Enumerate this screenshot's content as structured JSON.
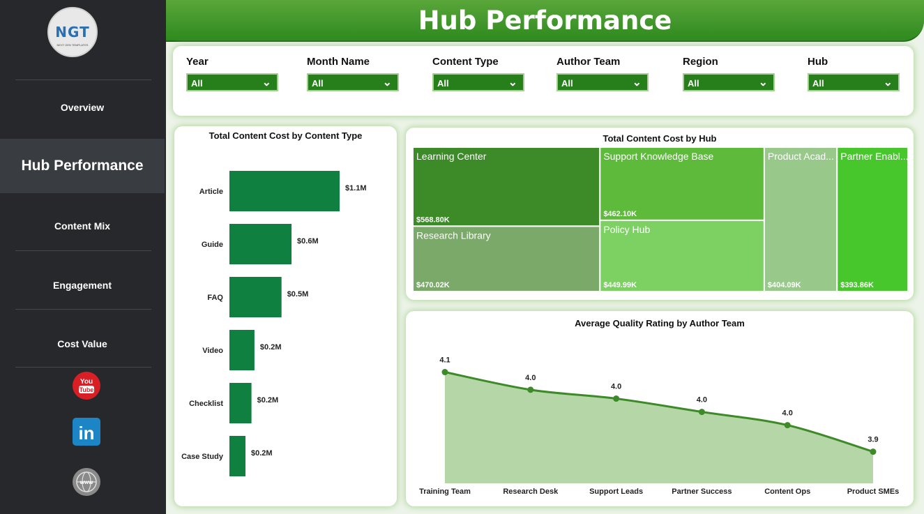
{
  "header": {
    "title": "Hub Performance"
  },
  "logo": {
    "text": "NGT",
    "subtitle": "NEXT GEN TEMPLATES"
  },
  "sidebar": {
    "items": [
      {
        "label": "Overview",
        "active": false
      },
      {
        "label": "Hub Performance",
        "active": true
      },
      {
        "label": "Content Mix",
        "active": false
      },
      {
        "label": "Engagement",
        "active": false
      },
      {
        "label": "Cost Value",
        "active": false
      }
    ],
    "social": [
      {
        "icon": "youtube-icon",
        "label": "YouTube",
        "color": "#d81f26"
      },
      {
        "icon": "linkedin-icon",
        "label": "in",
        "color": "#1b85c6"
      },
      {
        "icon": "globe-icon",
        "label": "www",
        "color": "#7a7a7a"
      }
    ]
  },
  "filters": [
    {
      "label": "Year",
      "value": "All"
    },
    {
      "label": "Month Name",
      "value": "All"
    },
    {
      "label": "Content Type",
      "value": "All"
    },
    {
      "label": "Author Team",
      "value": "All"
    },
    {
      "label": "Region",
      "value": "All"
    },
    {
      "label": "Hub",
      "value": "All"
    }
  ],
  "colors": {
    "brand_green": "#2e8a1f",
    "bar_green": "#0f8040",
    "line_green": "#3d8a28",
    "area_green": "#b5d6a6",
    "sidebar_bg": "#26282b"
  },
  "chart_data": [
    {
      "type": "bar",
      "orientation": "horizontal",
      "title": "Total Content Cost by Content Type",
      "categories": [
        "Article",
        "Guide",
        "FAQ",
        "Video",
        "Checklist",
        "Case Study"
      ],
      "values": [
        1.1,
        0.62,
        0.52,
        0.25,
        0.22,
        0.16
      ],
      "data_labels": [
        "$1.1M",
        "$0.6M",
        "$0.5M",
        "$0.2M",
        "$0.2M",
        "$0.2M"
      ],
      "unit": "$M"
    },
    {
      "type": "treemap",
      "title": "Total Content Cost by Hub",
      "items": [
        {
          "name": "Learning Center",
          "label": "Learning Center",
          "value": 568.8,
          "value_label": "$568.80K",
          "color": "#3d8a28"
        },
        {
          "name": "Research Library",
          "label": "Research Library",
          "value": 470.02,
          "value_label": "$470.02K",
          "color": "#7aa96a"
        },
        {
          "name": "Support Knowledge Base",
          "label": "Support Knowledge Base",
          "value": 462.1,
          "value_label": "$462.10K",
          "color": "#5eba3a"
        },
        {
          "name": "Policy Hub",
          "label": "Policy Hub",
          "value": 449.99,
          "value_label": "$449.99K",
          "color": "#7dd163"
        },
        {
          "name": "Product Academy",
          "label": "Product Acad...",
          "value": 404.09,
          "value_label": "$404.09K",
          "color": "#98c98a"
        },
        {
          "name": "Partner Enablement",
          "label": "Partner Enabl...",
          "value": 393.86,
          "value_label": "$393.86K",
          "color": "#47c72b"
        }
      ]
    },
    {
      "type": "area",
      "title": "Average Quality Rating by Author Team",
      "categories": [
        "Training Team",
        "Research Desk",
        "Support Leads",
        "Partner Success",
        "Content Ops",
        "Product SMEs"
      ],
      "values": [
        4.08,
        4.04,
        4.02,
        3.99,
        3.96,
        3.9
      ],
      "data_labels": [
        "4.1",
        "4.0",
        "4.0",
        "4.0",
        "4.0",
        "3.9"
      ]
    }
  ]
}
